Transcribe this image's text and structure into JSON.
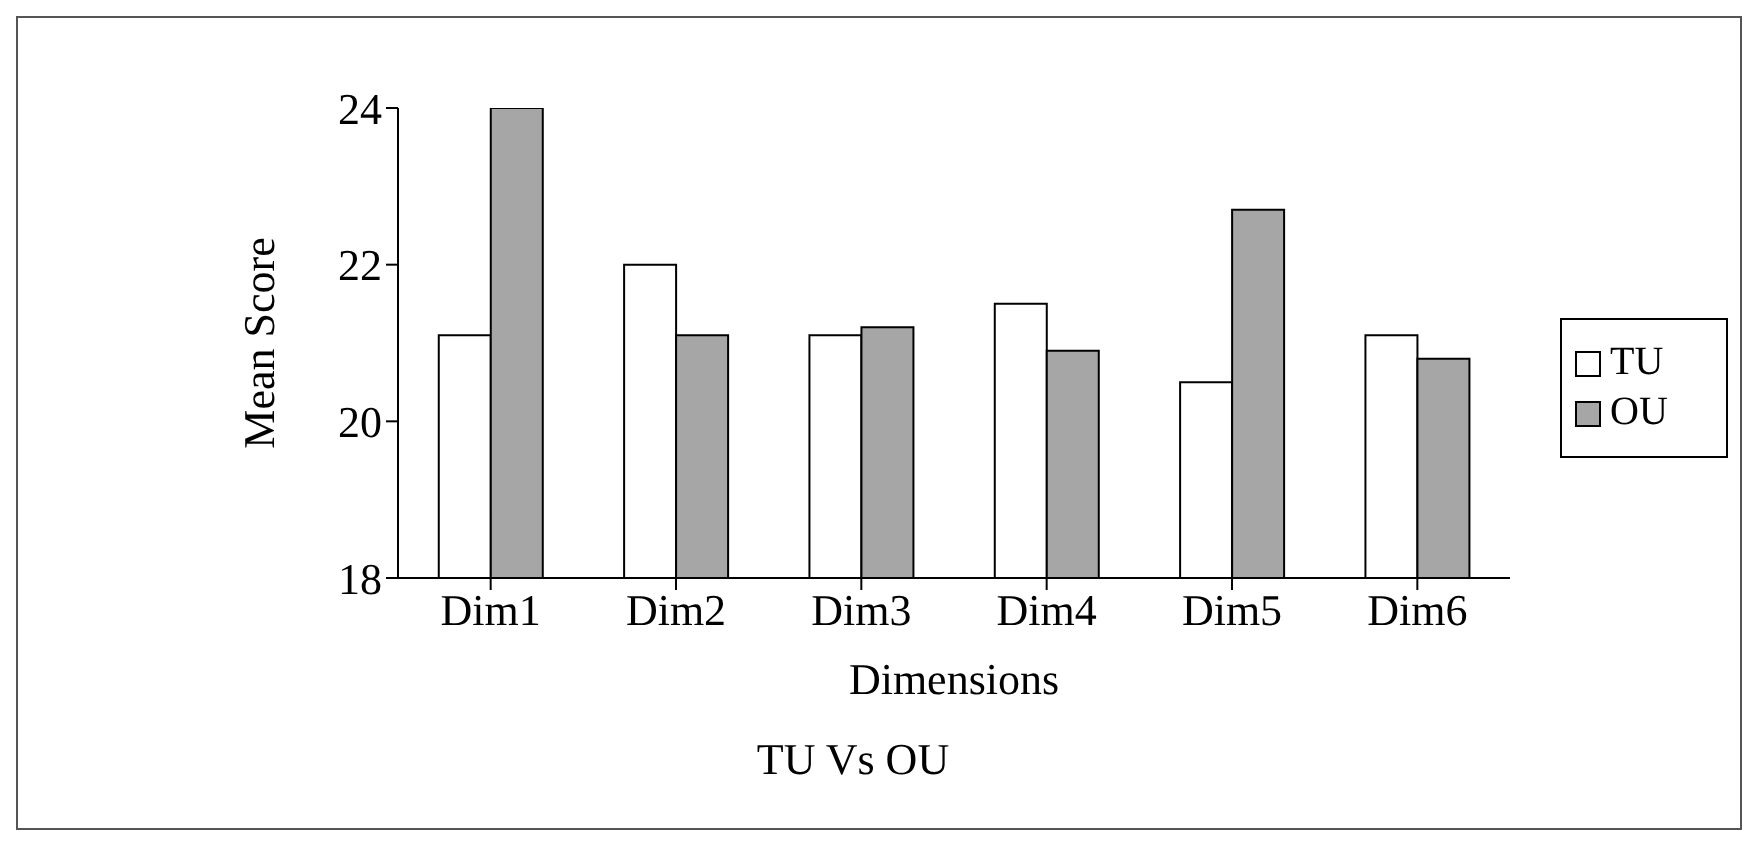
{
  "chart_data": {
    "type": "bar",
    "title": "TU Vs OU",
    "xlabel": "Dimensions",
    "ylabel": "Mean Score",
    "categories": [
      "Dim1",
      "Dim2",
      "Dim3",
      "Dim4",
      "Dim5",
      "Dim6"
    ],
    "series": [
      {
        "name": "TU",
        "color": "#ffffff",
        "values": [
          21.1,
          22.0,
          21.1,
          21.5,
          20.5,
          21.1
        ]
      },
      {
        "name": "OU",
        "color": "#a6a6a6",
        "values": [
          24.0,
          21.1,
          21.2,
          20.9,
          22.7,
          20.8
        ]
      }
    ],
    "ylim": [
      18,
      24
    ],
    "yticks": [
      18,
      20,
      22,
      24
    ],
    "grid": false,
    "legend": "right"
  }
}
